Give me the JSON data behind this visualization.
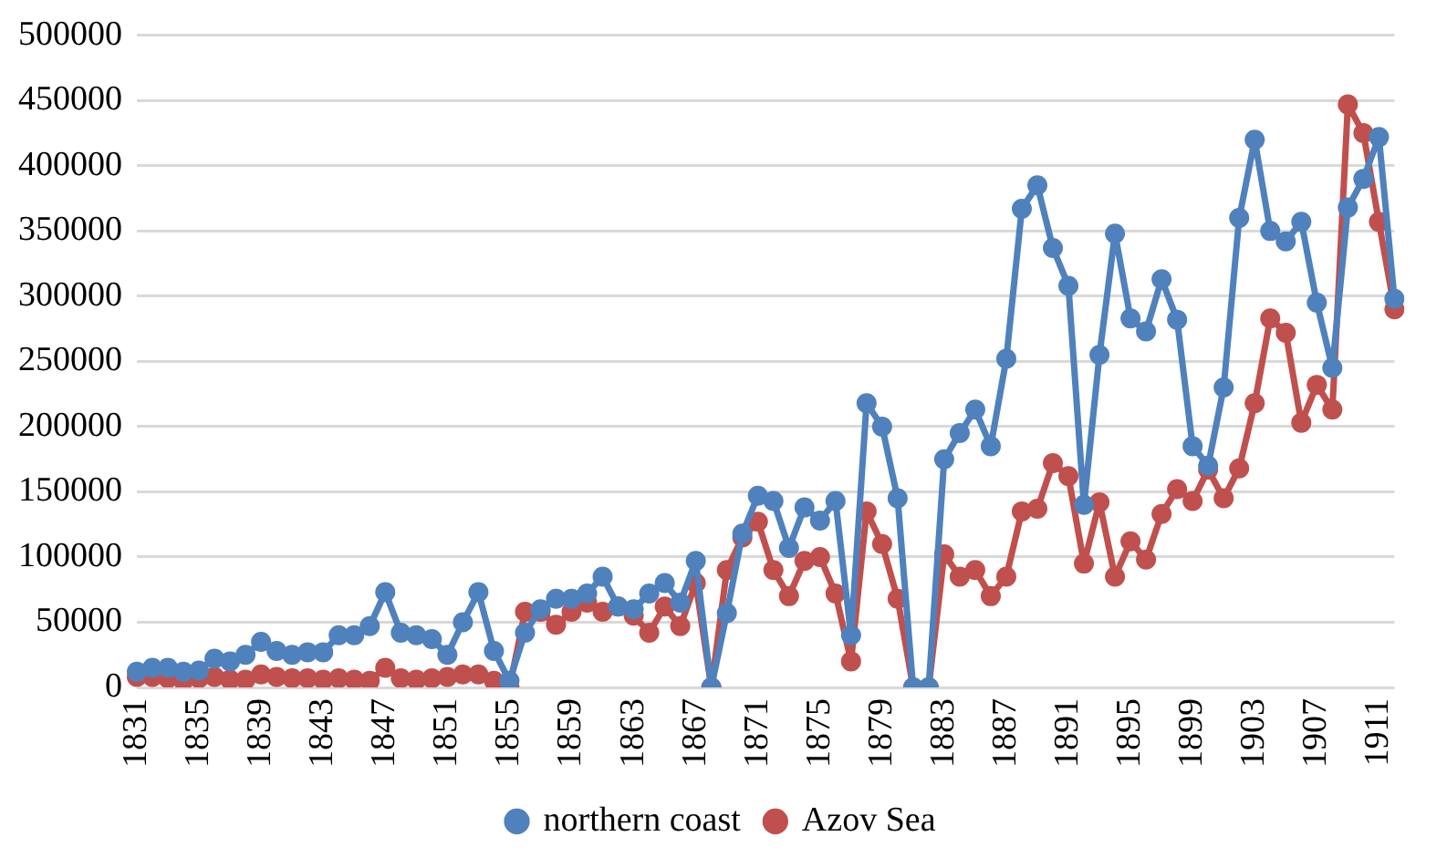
{
  "chart_data": {
    "type": "line",
    "categories": [
      "1831",
      null,
      null,
      null,
      "1835",
      null,
      null,
      null,
      "1839",
      null,
      null,
      null,
      "1843",
      null,
      null,
      null,
      "1847",
      null,
      null,
      null,
      "1851",
      null,
      null,
      null,
      "1855",
      null,
      null,
      null,
      "1859",
      null,
      null,
      null,
      "1863",
      null,
      null,
      null,
      "1867",
      null,
      null,
      null,
      "1871",
      null,
      null,
      null,
      "1875",
      null,
      null,
      null,
      "1879",
      null,
      null,
      null,
      "1883",
      null,
      null,
      null,
      "1887",
      null,
      null,
      null,
      "1891",
      null,
      null,
      null,
      "1895",
      null,
      null,
      null,
      "1899",
      null,
      null,
      null,
      "1903",
      null,
      null,
      null,
      "1907",
      null,
      null,
      null,
      "1911",
      null
    ],
    "series": [
      {
        "name": "northern coast",
        "color": "#4f81bd",
        "values": [
          12000,
          15000,
          15000,
          12000,
          13000,
          22000,
          20000,
          25000,
          35000,
          28000,
          25000,
          27000,
          27000,
          40000,
          40000,
          47000,
          73000,
          42000,
          40000,
          37000,
          25000,
          50000,
          73000,
          28000,
          5000,
          42000,
          60000,
          68000,
          68000,
          72000,
          85000,
          62000,
          60000,
          72000,
          80000,
          65000,
          97000,
          0,
          57000,
          118000,
          147000,
          143000,
          107000,
          138000,
          128000,
          143000,
          40000,
          218000,
          200000,
          145000,
          0,
          0,
          175000,
          195000,
          213000,
          185000,
          252000,
          367000,
          385000,
          337000,
          308000,
          140000,
          255000,
          348000,
          283000,
          273000,
          313000,
          282000,
          185000,
          170000,
          230000,
          360000,
          420000,
          350000,
          342000,
          357000,
          295000,
          245000,
          368000,
          390000,
          422000,
          298000
        ]
      },
      {
        "name": "Azov Sea",
        "color": "#c0504d",
        "values": [
          8000,
          8000,
          7000,
          5000,
          7000,
          8000,
          6000,
          6000,
          10000,
          8000,
          7000,
          7000,
          6000,
          7000,
          6000,
          5000,
          15000,
          7000,
          6000,
          7000,
          8000,
          10000,
          10000,
          5000,
          0,
          58000,
          58000,
          48000,
          58000,
          65000,
          58000,
          62000,
          55000,
          42000,
          62000,
          47000,
          80000,
          0,
          90000,
          115000,
          127000,
          90000,
          70000,
          97000,
          100000,
          72000,
          20000,
          135000,
          110000,
          68000,
          0,
          0,
          102000,
          85000,
          90000,
          70000,
          85000,
          135000,
          137000,
          172000,
          162000,
          95000,
          142000,
          85000,
          112000,
          98000,
          133000,
          152000,
          143000,
          167000,
          145000,
          168000,
          218000,
          283000,
          272000,
          203000,
          232000,
          213000,
          447000,
          425000,
          357000,
          290000
        ]
      }
    ],
    "ylim": [
      0,
      500000
    ],
    "yticks": [
      0,
      50000,
      100000,
      150000,
      200000,
      250000,
      300000,
      350000,
      400000,
      450000,
      500000
    ],
    "grid": "y",
    "legend": "bottom",
    "marker": "circle",
    "line_style": "solid"
  }
}
